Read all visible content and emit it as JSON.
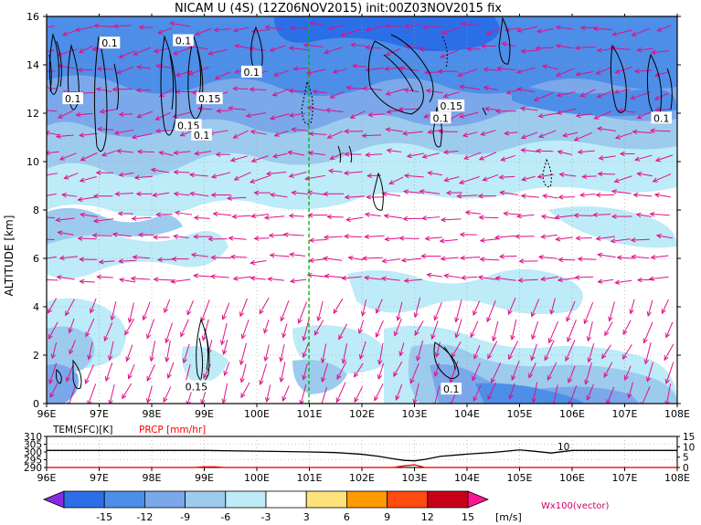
{
  "chart_data": [
    {
      "type": "heatmap",
      "title": "NICAM U (4S) (12Z06NOV2015) init:00Z03NOV2015 fix",
      "ylabel": "ALTITUDE [km]",
      "xlim": [
        96,
        108
      ],
      "ylim": [
        0,
        16
      ],
      "x_ticks": [
        "96E",
        "97E",
        "98E",
        "99E",
        "100E",
        "101E",
        "102E",
        "103E",
        "104E",
        "105E",
        "106E",
        "107E",
        "108E"
      ],
      "y_ticks": [
        "0",
        "2",
        "4",
        "6",
        "8",
        "10",
        "12",
        "14",
        "16"
      ],
      "grid": true,
      "marker_line_x": 101,
      "contour_labels": [
        {
          "text": "0.1",
          "x": 96.5,
          "y": 12.6
        },
        {
          "text": "0.1",
          "x": 97.2,
          "y": 14.9
        },
        {
          "text": "0.1",
          "x": 98.6,
          "y": 15.0
        },
        {
          "text": "0.15",
          "x": 99.1,
          "y": 12.6
        },
        {
          "text": "0.15",
          "x": 98.7,
          "y": 11.5
        },
        {
          "text": "0.1",
          "x": 98.95,
          "y": 11.1
        },
        {
          "text": "0.1",
          "x": 99.9,
          "y": 13.7
        },
        {
          "text": "0.15",
          "x": 103.7,
          "y": 12.3
        },
        {
          "text": "0.1",
          "x": 103.5,
          "y": 11.8
        },
        {
          "text": "0.1",
          "x": 107.7,
          "y": 11.8
        },
        {
          "text": "0.15",
          "x": 98.85,
          "y": 0.7
        },
        {
          "text": "0.1",
          "x": 103.7,
          "y": 0.6
        }
      ]
    },
    {
      "type": "line",
      "series": [
        {
          "name": "TEM(SFC)[K]",
          "color": "#000000",
          "x": [
            96,
            97,
            98,
            99,
            100,
            100.5,
            101,
            101.5,
            102,
            102.3,
            102.6,
            102.8,
            103,
            103.2,
            103.5,
            104,
            104.5,
            105,
            105.3,
            105.6,
            106,
            106.5,
            107,
            107.5,
            108
          ],
          "values": [
            301,
            301,
            301,
            301,
            300.5,
            300.3,
            300,
            299.6,
            298.5,
            297.3,
            295.6,
            294.6,
            294.3,
            295.2,
            297.2,
            298.6,
            299.7,
            301.3,
            300.4,
            299.3,
            301,
            301,
            301,
            301,
            301
          ]
        },
        {
          "name": "PRCP [mm/hr]",
          "color": "#ff0000",
          "x": [
            96,
            98.8,
            99,
            99.2,
            99.4,
            101,
            102.6,
            102.8,
            103,
            103.2,
            108
          ],
          "values": [
            0,
            0,
            0.3,
            0.3,
            0,
            0,
            0,
            0.8,
            1.3,
            0,
            0
          ]
        }
      ],
      "x_ticks": [
        "96E",
        "97E",
        "98E",
        "99E",
        "100E",
        "101E",
        "102E",
        "103E",
        "104E",
        "105E",
        "106E",
        "107E",
        "108E"
      ],
      "y_ticks_left": [
        "290",
        "295",
        "300",
        "305",
        "310"
      ],
      "y_ticks_right": [
        "0",
        "5",
        "10",
        "15"
      ],
      "ylim_left": [
        290,
        310
      ],
      "ylim_right": [
        0,
        15
      ],
      "annotation": "10"
    }
  ],
  "colorbar": {
    "labels": [
      "-15",
      "-12",
      "-9",
      "-6",
      "-3",
      "3",
      "6",
      "9",
      "12",
      "15"
    ],
    "colors": [
      "#8a2be2",
      "#2b6fe8",
      "#4d8ee8",
      "#7aa8ea",
      "#9ccbee",
      "#bdebf7",
      "#ffffff",
      "#ffe27a",
      "#ff9a00",
      "#ff4a10",
      "#c8001a",
      "#ff1493"
    ],
    "unit": "[m/s]"
  },
  "vector_label": "Wx100(vector)",
  "palette": {
    "vector": "#e0108a",
    "contour": "#000000",
    "marker_line": "#00b000"
  }
}
